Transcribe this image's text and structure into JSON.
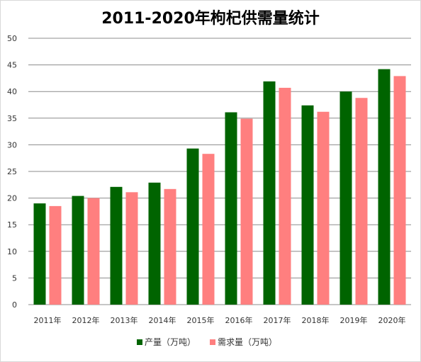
{
  "chart_data": {
    "type": "bar",
    "title": "2011-2020年枸杞供需量统计",
    "xlabel": "",
    "ylabel": "",
    "categories": [
      "2011年",
      "2012年",
      "2013年",
      "2014年",
      "2015年",
      "2016年",
      "2017年",
      "2018年",
      "2019年",
      "2020年"
    ],
    "series": [
      {
        "name": "产量（万吨）",
        "color": "#006400",
        "values": [
          19.0,
          20.4,
          22.1,
          22.9,
          29.3,
          36.1,
          41.9,
          37.4,
          40.0,
          44.2
        ]
      },
      {
        "name": "需求量（万吨）",
        "color": "#ff7f7f",
        "values": [
          18.5,
          20.0,
          21.1,
          21.7,
          28.3,
          34.9,
          40.7,
          36.2,
          38.8,
          42.9
        ]
      }
    ],
    "ylim": [
      0,
      50
    ],
    "yticks": [
      0,
      5,
      10,
      15,
      20,
      25,
      30,
      35,
      40,
      45,
      50
    ],
    "grid": true,
    "legend": "bottom"
  }
}
